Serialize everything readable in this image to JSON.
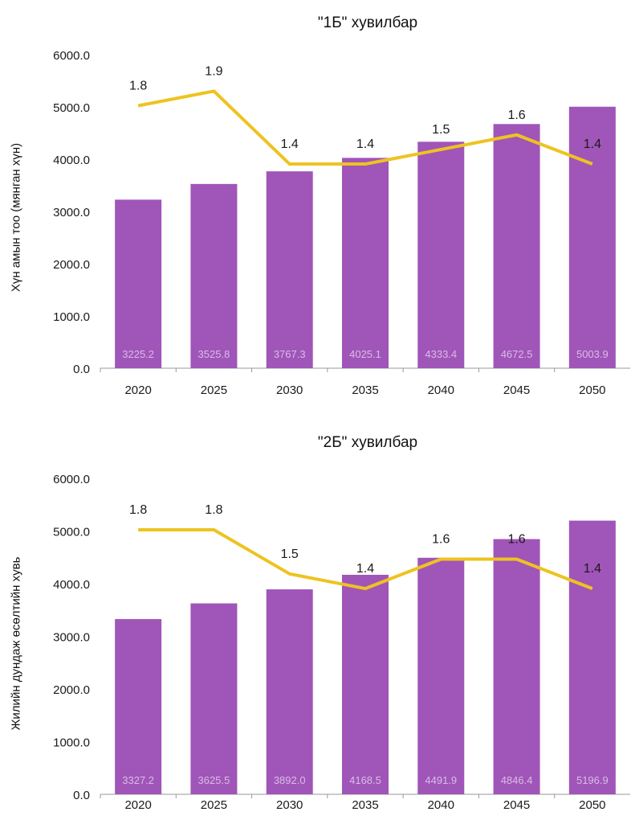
{
  "colors": {
    "bar": "#a055b8",
    "line": "#eec320",
    "bar_label": "#d8bde6",
    "axis": "#999999",
    "text": "#1a1a1a"
  },
  "chart_data": [
    {
      "type": "bar",
      "title": "\"1Б\" хувилбар",
      "ylabel": "Хүн амын тоо (мянган хүн)",
      "categories": [
        "2020",
        "2025",
        "2030",
        "2035",
        "2040",
        "2045",
        "2050"
      ],
      "ylim": [
        0,
        6000
      ],
      "yticks": [
        "0.0",
        "1000.0",
        "2000.0",
        "3000.0",
        "4000.0",
        "5000.0",
        "6000.0"
      ],
      "bars": {
        "values": [
          3225.2,
          3525.8,
          3767.3,
          4025.1,
          4333.4,
          4672.5,
          5003.9
        ],
        "labels": [
          "3225.2",
          "3525.8",
          "3767.3",
          "4025.1",
          "4333.4",
          "4672.5",
          "5003.9"
        ]
      },
      "line": {
        "values": [
          1.8,
          1.9,
          1.4,
          1.4,
          1.5,
          1.6,
          1.4
        ],
        "labels": [
          "1.8",
          "1.9",
          "1.4",
          "1.4",
          "1.5",
          "1.6",
          "1.4"
        ],
        "ylim": [
          0,
          2.15
        ]
      },
      "grid": false
    },
    {
      "type": "bar",
      "title": "\"2Б\" хувилбар",
      "ylabel": "Жилийн дундаж өсөлтийн хувь",
      "categories": [
        "2020",
        "2025",
        "2030",
        "2035",
        "2040",
        "2045",
        "2050"
      ],
      "ylim": [
        0,
        6000
      ],
      "yticks": [
        "0.0",
        "1000.0",
        "2000.0",
        "3000.0",
        "4000.0",
        "5000.0",
        "6000.0"
      ],
      "bars": {
        "values": [
          3327.2,
          3625.5,
          3892.0,
          4168.5,
          4491.9,
          4846.4,
          5196.9
        ],
        "labels": [
          "3327.2",
          "3625.5",
          "3892.0",
          "4168.5",
          "4491.9",
          "4846.4",
          "5196.9"
        ]
      },
      "line": {
        "values": [
          1.8,
          1.8,
          1.5,
          1.4,
          1.6,
          1.6,
          1.4
        ],
        "labels": [
          "1.8",
          "1.8",
          "1.5",
          "1.4",
          "1.6",
          "1.6",
          "1.4"
        ],
        "ylim": [
          0,
          2.15
        ]
      },
      "grid": false
    }
  ]
}
